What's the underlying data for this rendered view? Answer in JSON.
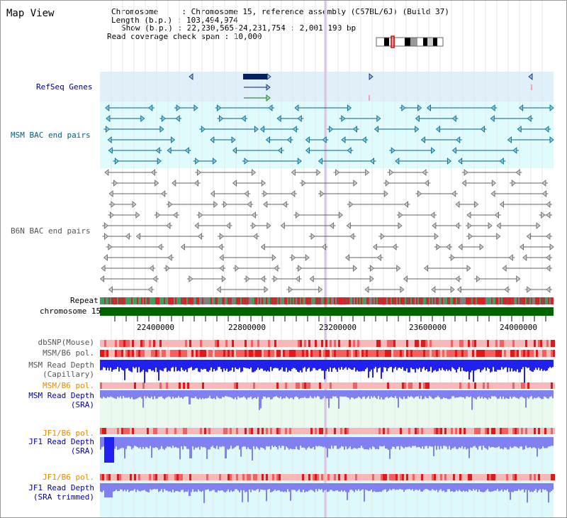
{
  "title": "Map View",
  "info": {
    "chromosome": "Chromosome     : Chromosome 15, reference assembly (C57BL/6J) (Build 37)",
    "length": "Length (b.p.) : 103,494,974",
    "show": "Show (b.p.) : 22,230,565-24,231,754 : 2,001,190 bp",
    "coverage": "Read coverage check span : 10,000"
  },
  "tracks": {
    "refseq": "RefSeq Genes",
    "msm_bac": "MSM BAC end pairs",
    "b6n_bac": "B6N BAC end pairs",
    "repeat": "Repeat",
    "chromosome": "chromosome 15",
    "dbsnp": "dbSNP(Mouse)",
    "msm_b6_pol": "MSM/B6 pol.",
    "msm_depth_cap_1": "MSM Read Depth",
    "msm_depth_cap_2": "(Capillary)",
    "msm_b6_pol2": "MSM/B6 pol.",
    "msm_depth_sra_1": "MSM Read Depth",
    "msm_depth_sra_2": "(SRA)",
    "jf1_b6_pol": "JF1/B6 pol.",
    "jf1_depth_sra_1": "JF1 Read Depth",
    "jf1_depth_sra_2": "(SRA)",
    "jf1_b6_pol2": "JF1/B6 pol.",
    "jf1_depth_trim_1": "JF1 Read Depth",
    "jf1_depth_trim_2": "(SRA trimmed)"
  },
  "axis": {
    "ticks": [
      "22400000",
      "22800000",
      "23200000",
      "23600000",
      "24000000"
    ]
  },
  "colors": {
    "refseq_bg": "#dff0fb",
    "msm_bac_bg": "#e0fbfb",
    "gene": "#002060",
    "msm_pair": "#005f7f",
    "b6n_pair": "#606060",
    "chrom_bar": "#006400",
    "snp_red": "#f03030",
    "depth_blue": "#2020f0",
    "depth_light": "#8080f0",
    "sra_bg": "#eafaee",
    "jf1_bg": "#ddf9fb"
  }
}
